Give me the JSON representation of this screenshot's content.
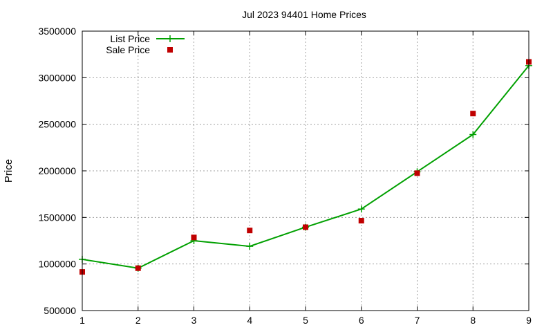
{
  "chart_data": {
    "type": "line",
    "title": "Jul 2023 94401 Home Prices",
    "xlabel": "",
    "ylabel": "Price",
    "x": [
      1,
      2,
      3,
      4,
      5,
      6,
      7,
      8,
      9
    ],
    "xlim": [
      1,
      9
    ],
    "ylim": [
      500000,
      3500000
    ],
    "xticks": [
      "1",
      "2",
      "3",
      "4",
      "5",
      "6",
      "7",
      "8",
      "9"
    ],
    "yticks": [
      "500000",
      "1000000",
      "1500000",
      "2000000",
      "2500000",
      "3000000",
      "3500000"
    ],
    "grid": true,
    "legend_position": "top-left",
    "series": [
      {
        "name": "List Price",
        "style": "line+cross",
        "color": "#00a000",
        "values": [
          1050000,
          955000,
          1250000,
          1190000,
          1395000,
          1590000,
          1990000,
          2390000,
          3130000
        ]
      },
      {
        "name": "Sale Price",
        "style": "square",
        "color": "#c00000",
        "values": [
          915000,
          955000,
          1285000,
          1360000,
          1395000,
          1465000,
          1975000,
          2615000,
          3170000
        ]
      }
    ]
  }
}
